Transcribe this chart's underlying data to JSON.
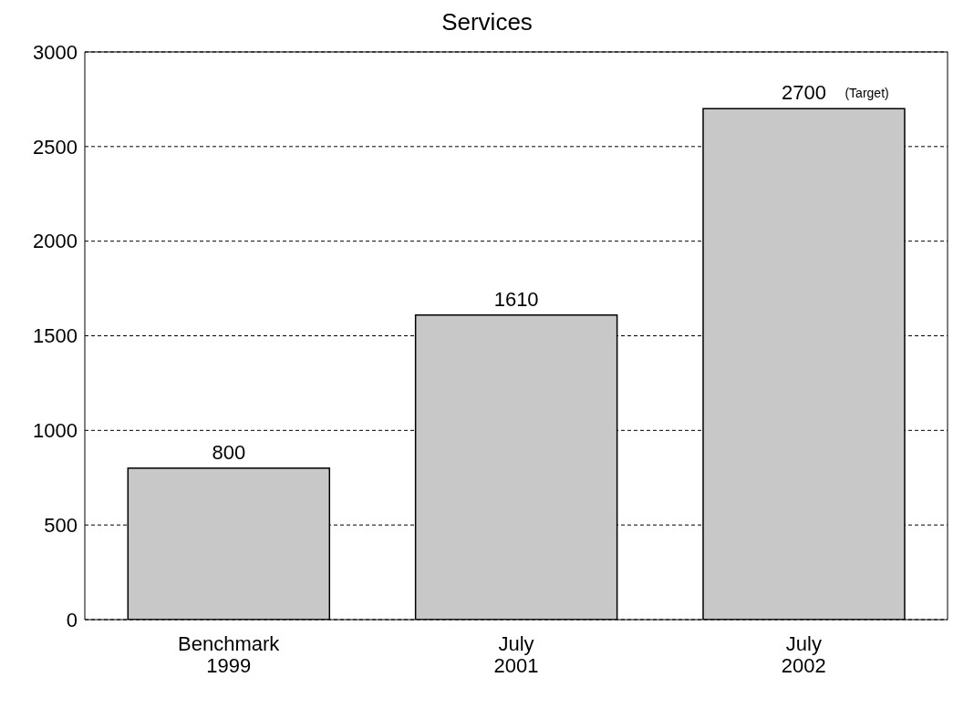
{
  "chart_data": {
    "type": "bar",
    "title": "Services",
    "categories": [
      "Benchmark\n1999",
      "July\n2001",
      "July\n2002"
    ],
    "values": [
      800,
      1610,
      2700
    ],
    "color": "#c8c8c8",
    "ylim": [
      0,
      3000
    ],
    "yticks": [
      0,
      500,
      1000,
      1500,
      2000,
      2500,
      3000
    ],
    "grid": "y",
    "data_labels": true,
    "annotations": [
      "(Target)"
    ]
  }
}
